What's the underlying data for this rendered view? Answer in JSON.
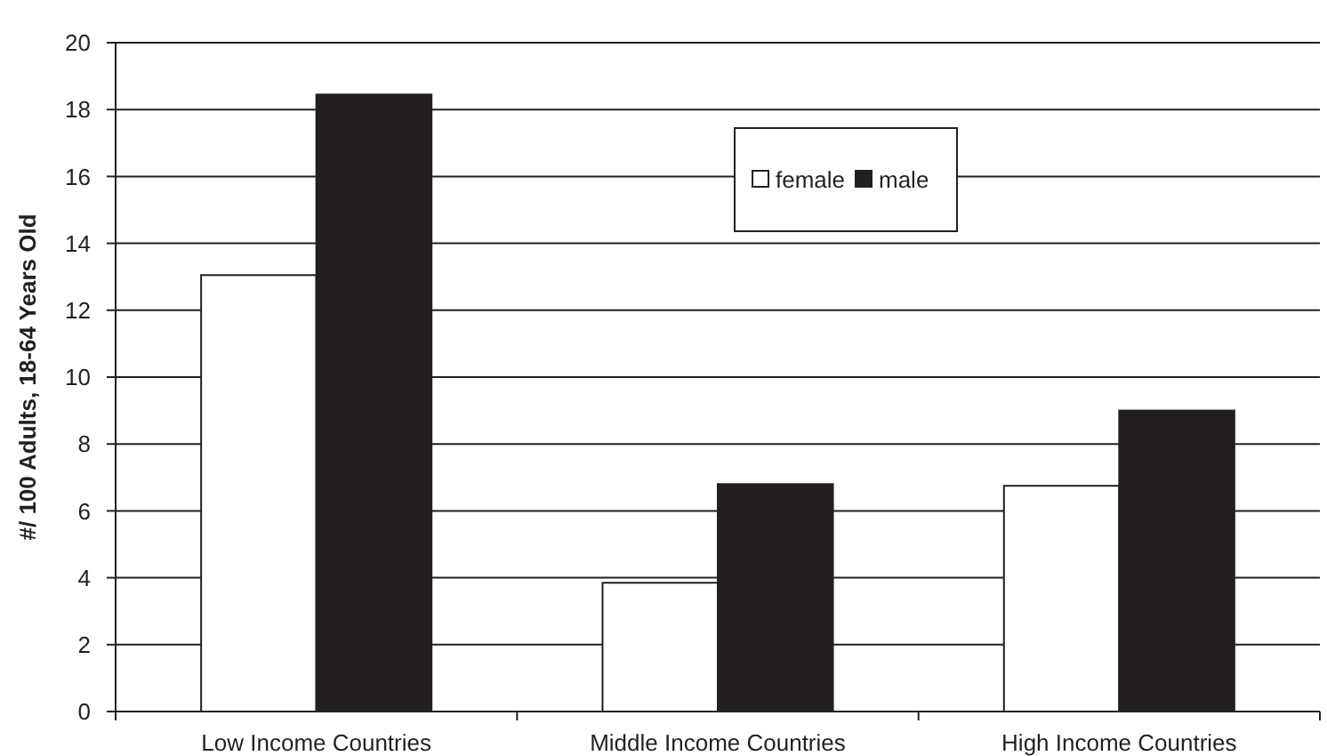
{
  "chart_data": {
    "type": "bar",
    "ylabel": "#/ 100 Adults, 18-64 Years Old",
    "categories": [
      "Low Income Countries",
      "Middle Income Countries",
      "High Income Countries"
    ],
    "series": [
      {
        "name": "female",
        "color": "#ffffff",
        "values": [
          13.05,
          3.85,
          6.75
        ]
      },
      {
        "name": "male",
        "color": "#231f20",
        "values": [
          18.45,
          6.8,
          9.0
        ]
      }
    ],
    "ylim": [
      0,
      20
    ],
    "yticks": [
      0,
      2,
      4,
      6,
      8,
      10,
      12,
      14,
      16,
      18,
      20
    ],
    "grid": "y",
    "legend": "top right"
  }
}
